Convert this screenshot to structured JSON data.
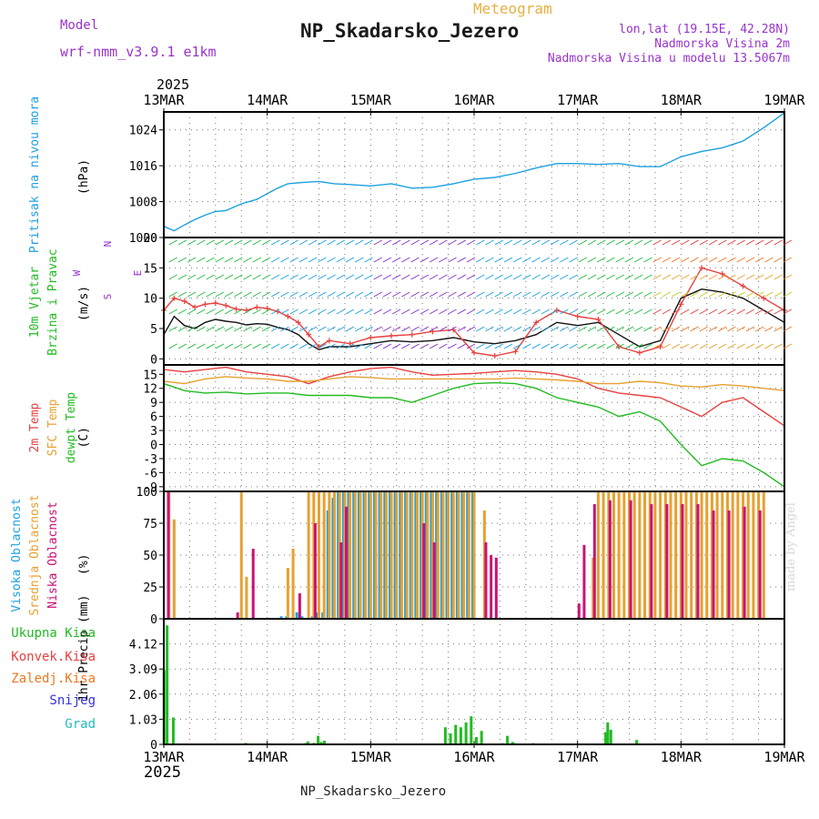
{
  "header": {
    "meteogram_label": "Meteogram",
    "station_title": "NP_Skadarsko_Jezero",
    "model_label": "Model",
    "model_name": "wrf-nmm_v3.9.1 e1km",
    "lonlat": "lon,lat (19.15E, 42.28N)",
    "altitude": "Nadmorska Visina 2m",
    "model_altitude": "Nadmorska Visina u modelu 13.5067m",
    "credit": "made by Angel",
    "footer_station": "NP_Skadarsko_Jezero"
  },
  "colors": {
    "title": "#1a1a1a",
    "meta": "#9933cc",
    "meteogram": "#e8b040",
    "pressure": "#1ca0e0",
    "wind_label": "#22bb22",
    "temp2m": "#e84040",
    "sfc": "#e8a030",
    "dewpt": "#22bb22",
    "high_cloud": "#1ca0e0",
    "mid_cloud": "#e8a030",
    "low_cloud": "#cc1177",
    "precip_total": "#22bb22",
    "precip_conv": "#e84040",
    "precip_grid": "#ee7722",
    "snow": "#3333dd",
    "grad": "#22bbbb",
    "credit": "#d8d8d8"
  },
  "chart_data": [
    {
      "type": "line",
      "id": "pressure",
      "ylabel_lines": [
        "Pritisak na nivou mora"
      ],
      "unit": "(hPa)",
      "x_ticks": [
        "13MAR",
        "14MAR",
        "15MAR",
        "16MAR",
        "17MAR",
        "18MAR",
        "19MAR"
      ],
      "x_year": "2025",
      "x_range_days": [
        0,
        6
      ],
      "ylim": [
        1000,
        1028
      ],
      "yticks": [
        1000,
        1008,
        1016,
        1024
      ],
      "grid": true,
      "series": [
        {
          "color": "#1ca0e0",
          "x": [
            0,
            0.1,
            0.2,
            0.3,
            0.4,
            0.5,
            0.6,
            0.75,
            0.9,
            1.0,
            1.1,
            1.2,
            1.35,
            1.5,
            1.65,
            1.8,
            2.0,
            2.2,
            2.4,
            2.6,
            2.8,
            3.0,
            3.2,
            3.4,
            3.6,
            3.8,
            4.0,
            4.2,
            4.4,
            4.6,
            4.8,
            5.0,
            5.2,
            5.4,
            5.6,
            5.8,
            6.0
          ],
          "y": [
            1002.5,
            1001.5,
            1002.8,
            1004.0,
            1005.0,
            1005.8,
            1006.0,
            1007.5,
            1008.5,
            1009.8,
            1011.0,
            1012.0,
            1012.3,
            1012.5,
            1012.0,
            1011.8,
            1011.5,
            1012.0,
            1011.0,
            1011.2,
            1012.0,
            1013.0,
            1013.4,
            1014.3,
            1015.5,
            1016.5,
            1016.5,
            1016.3,
            1016.5,
            1015.8,
            1015.8,
            1018.0,
            1019.2,
            1020.0,
            1021.5,
            1024.5,
            1027.8
          ]
        }
      ]
    },
    {
      "type": "line",
      "id": "wind",
      "ylabel_lines": [
        "10m Vjetar",
        "Brzina i Pravac"
      ],
      "unit": "(m/s)",
      "compass": [
        "N",
        "E",
        "S",
        "W"
      ],
      "ylim": [
        -1,
        20
      ],
      "yticks": [
        0,
        5,
        10,
        15,
        20
      ],
      "grid": true,
      "series": [
        {
          "name": "speed",
          "color": "#111111",
          "x": [
            0,
            0.1,
            0.2,
            0.3,
            0.4,
            0.5,
            0.6,
            0.7,
            0.8,
            0.9,
            1.0,
            1.1,
            1.2,
            1.3,
            1.4,
            1.5,
            1.6,
            1.8,
            2.0,
            2.2,
            2.4,
            2.6,
            2.8,
            3.0,
            3.2,
            3.4,
            3.6,
            3.8,
            4.0,
            4.2,
            4.4,
            4.6,
            4.8,
            5.0,
            5.2,
            5.4,
            5.6,
            5.8,
            6.0
          ],
          "y": [
            4,
            7,
            5.5,
            5,
            6,
            6.5,
            6.2,
            6,
            5.6,
            5.8,
            5.7,
            5.2,
            4.8,
            4,
            2.5,
            1.5,
            2,
            2,
            2.5,
            3,
            2.8,
            3,
            3.5,
            2.8,
            2.5,
            3,
            4,
            6,
            5.5,
            6,
            4,
            2,
            3,
            10,
            11.5,
            11,
            10,
            8,
            6
          ]
        },
        {
          "name": "gust",
          "color": "#e84040",
          "x": [
            0,
            0.1,
            0.2,
            0.3,
            0.4,
            0.5,
            0.6,
            0.7,
            0.8,
            0.9,
            1.0,
            1.1,
            1.2,
            1.3,
            1.4,
            1.5,
            1.6,
            1.8,
            2.0,
            2.2,
            2.4,
            2.6,
            2.8,
            3.0,
            3.2,
            3.4,
            3.6,
            3.8,
            4.0,
            4.2,
            4.4,
            4.6,
            4.8,
            5.0,
            5.2,
            5.4,
            5.6,
            5.8,
            6.0
          ],
          "y": [
            8,
            10,
            9.5,
            8.5,
            9,
            9.2,
            8.8,
            8.2,
            8,
            8.5,
            8.3,
            7.8,
            7,
            6,
            4,
            2,
            3,
            2.5,
            3.5,
            3.8,
            4,
            4.5,
            4.8,
            1,
            0.5,
            1.2,
            6,
            8,
            7,
            6.5,
            2,
            1,
            2,
            9,
            15,
            14,
            12,
            10,
            8
          ]
        }
      ]
    },
    {
      "type": "line",
      "id": "temperature",
      "ylabel_lines": [
        "2m Temp",
        "SFC Temp",
        "dewpt Temp"
      ],
      "unit": "(C)",
      "ylim": [
        -10,
        17
      ],
      "yticks": [
        -9,
        -6,
        -3,
        0,
        3,
        6,
        9,
        12,
        15
      ],
      "grid": true,
      "series": [
        {
          "name": "2m Temp",
          "color": "#e84040",
          "x": [
            0,
            0.2,
            0.4,
            0.6,
            0.8,
            1.0,
            1.2,
            1.4,
            1.6,
            1.8,
            2.0,
            2.2,
            2.4,
            2.6,
            2.8,
            3.0,
            3.2,
            3.4,
            3.6,
            3.8,
            4.0,
            4.2,
            4.4,
            4.6,
            4.8,
            5.0,
            5.2,
            5.4,
            5.6,
            5.8,
            6.0
          ],
          "y": [
            16,
            15.5,
            16,
            16.5,
            15.5,
            15,
            14.5,
            13,
            14.5,
            15.5,
            16.2,
            16.5,
            15.5,
            14.8,
            15,
            15.2,
            15.5,
            15.8,
            15.5,
            15,
            14,
            12,
            11,
            10.5,
            10,
            8,
            6,
            9,
            10,
            7,
            4
          ]
        },
        {
          "name": "SFC Temp",
          "color": "#e8a030",
          "x": [
            0,
            0.2,
            0.4,
            0.6,
            0.8,
            1.0,
            1.2,
            1.4,
            1.6,
            1.8,
            2.0,
            2.2,
            2.4,
            2.6,
            2.8,
            3.0,
            3.2,
            3.4,
            3.6,
            3.8,
            4.0,
            4.2,
            4.4,
            4.6,
            4.8,
            5.0,
            5.2,
            5.4,
            5.6,
            5.8,
            6.0
          ],
          "y": [
            13.5,
            13,
            14,
            14.5,
            14.2,
            14,
            13.5,
            13.5,
            14,
            14.5,
            14.3,
            14,
            14,
            14,
            14,
            14,
            14,
            14.2,
            14,
            13.8,
            13.5,
            13,
            13,
            13.5,
            13.2,
            12.5,
            12.3,
            12.8,
            12.5,
            12,
            11.5
          ]
        },
        {
          "name": "dewpt Temp",
          "color": "#22bb22",
          "x": [
            0,
            0.2,
            0.4,
            0.6,
            0.8,
            1.0,
            1.2,
            1.4,
            1.6,
            1.8,
            2.0,
            2.2,
            2.4,
            2.6,
            2.8,
            3.0,
            3.2,
            3.4,
            3.6,
            3.8,
            4.0,
            4.2,
            4.4,
            4.6,
            4.8,
            5.0,
            5.2,
            5.4,
            5.6,
            5.8,
            6.0
          ],
          "y": [
            13,
            11.5,
            11,
            11.2,
            10.8,
            11,
            11,
            10.5,
            10.5,
            10.5,
            10,
            10,
            9,
            10.5,
            12,
            13,
            13.2,
            13,
            12,
            10,
            9,
            8,
            6,
            7,
            5,
            0,
            -4.5,
            -3,
            -3.5,
            -6,
            -9
          ]
        }
      ]
    },
    {
      "type": "bar",
      "id": "cloud",
      "ylabel_lines": [
        "Visoka Oblacnost",
        "Srednja Oblacnost",
        "Niska Oblacnost"
      ],
      "unit": "(%)",
      "ylim": [
        0,
        100
      ],
      "yticks": [
        0,
        25,
        50,
        75,
        100
      ],
      "grid": true,
      "series": [
        {
          "name": "Visoka Oblacnost",
          "color": "#1ca0e0",
          "x": [
            1.15,
            1.2,
            1.3,
            1.35,
            1.45,
            1.5,
            1.55,
            1.6,
            1.65,
            1.7,
            1.75,
            1.8,
            1.85,
            1.9,
            1.95,
            2.0,
            2.05,
            2.1,
            2.15,
            2.2,
            2.25,
            2.3,
            2.35,
            2.4,
            2.45,
            2.5,
            2.55,
            2.6,
            2.65,
            2.7,
            2.75,
            2.8,
            2.85,
            2.9,
            2.95,
            3.0
          ],
          "y": [
            2,
            2,
            5,
            2,
            2,
            5,
            5,
            85,
            95,
            100,
            100,
            100,
            100,
            100,
            100,
            100,
            100,
            100,
            100,
            100,
            100,
            100,
            100,
            100,
            100,
            100,
            100,
            100,
            100,
            100,
            100,
            100,
            100,
            100,
            100,
            100
          ]
        },
        {
          "name": "Srednja Oblacnost",
          "color": "#e8a030",
          "x": [
            0.05,
            0.1,
            0.75,
            0.8,
            1.2,
            1.25,
            1.4,
            1.45,
            1.5,
            1.55,
            1.6,
            1.65,
            1.7,
            1.75,
            1.8,
            1.85,
            1.9,
            1.95,
            2.0,
            2.05,
            2.1,
            2.15,
            2.2,
            2.25,
            2.3,
            2.35,
            2.4,
            2.45,
            2.5,
            2.55,
            2.6,
            2.65,
            2.7,
            2.75,
            2.8,
            2.85,
            2.9,
            2.95,
            3.0,
            3.1,
            4.15,
            4.2,
            4.25,
            4.3,
            4.35,
            4.4,
            4.45,
            4.5,
            4.55,
            4.6,
            4.65,
            4.7,
            4.75,
            4.8,
            4.85,
            4.9,
            4.95,
            5.0,
            5.05,
            5.1,
            5.15,
            5.2,
            5.25,
            5.3,
            5.35,
            5.4,
            5.45,
            5.5,
            5.55,
            5.6,
            5.65,
            5.7,
            5.75,
            5.8
          ],
          "y": [
            100,
            78,
            100,
            33,
            40,
            55,
            100,
            100,
            100,
            100,
            100,
            100,
            100,
            100,
            100,
            100,
            100,
            100,
            100,
            100,
            100,
            100,
            100,
            100,
            100,
            100,
            100,
            100,
            100,
            100,
            100,
            100,
            100,
            100,
            100,
            100,
            100,
            100,
            100,
            85,
            48,
            100,
            100,
            100,
            100,
            100,
            100,
            100,
            100,
            100,
            100,
            100,
            100,
            100,
            100,
            100,
            100,
            100,
            100,
            100,
            100,
            100,
            100,
            100,
            100,
            100,
            100,
            100,
            100,
            100,
            100,
            100,
            100,
            100
          ]
        },
        {
          "name": "Niska Oblacnost",
          "color": "#cc1177",
          "x": [
            0.03,
            0.7,
            0.85,
            1.3,
            1.45,
            1.7,
            1.75,
            2.5,
            2.6,
            3.1,
            3.15,
            3.2,
            4.0,
            4.05,
            4.15,
            4.3,
            4.5,
            4.7,
            4.85,
            5.0,
            5.15,
            5.3,
            5.45,
            5.6,
            5.75
          ],
          "y": [
            100,
            5,
            55,
            20,
            75,
            60,
            88,
            75,
            60,
            60,
            50,
            48,
            12,
            58,
            90,
            93,
            93,
            90,
            90,
            90,
            90,
            85,
            85,
            88,
            85
          ]
        }
      ]
    },
    {
      "type": "bar",
      "id": "precip",
      "ylabel_lines": [
        "Ukupna Kisa",
        "Konvek.Kisa",
        "Zaledj.Kisa",
        "Snijeg",
        "Grad"
      ],
      "unit": "1hr Precip (mm)",
      "ylim": [
        0,
        5.15
      ],
      "yticks": [
        0,
        1.03,
        2.06,
        3.09,
        4.12
      ],
      "grid": true,
      "series": [
        {
          "name": "Ukupna Kisa",
          "color": "#22bb22",
          "x": [
            0.03,
            0.06,
            0.12,
            0.82,
            1.4,
            1.42,
            1.48,
            1.52,
            1.55,
            1.58,
            2.75,
            2.8,
            2.85,
            2.9,
            2.95,
            3.0,
            3.05,
            3.1,
            3.3,
            3.35,
            3.4,
            3.42,
            3.6,
            4.3,
            4.32,
            4.35,
            4.6
          ],
          "y": [
            3.05,
            4.88,
            1.1,
            0.06,
            0.05,
            0.12,
            0.06,
            0.35,
            0.1,
            0.15,
            0.7,
            0.45,
            0.8,
            0.7,
            0.9,
            1.15,
            0.3,
            0.55,
            0.05,
            0.35,
            0.1,
            0.05,
            0.05,
            0.5,
            0.9,
            0.6,
            0.18
          ]
        },
        {
          "name": "Konvek.Kisa",
          "color": "#e84040",
          "x": [],
          "y": []
        },
        {
          "name": "Zaledj.Kisa",
          "color": "#ee7722",
          "x": [],
          "y": []
        },
        {
          "name": "Snijeg",
          "color": "#3333dd",
          "x": [],
          "y": []
        },
        {
          "name": "Grad",
          "color": "#22bbbb",
          "x": [],
          "y": []
        }
      ]
    }
  ]
}
